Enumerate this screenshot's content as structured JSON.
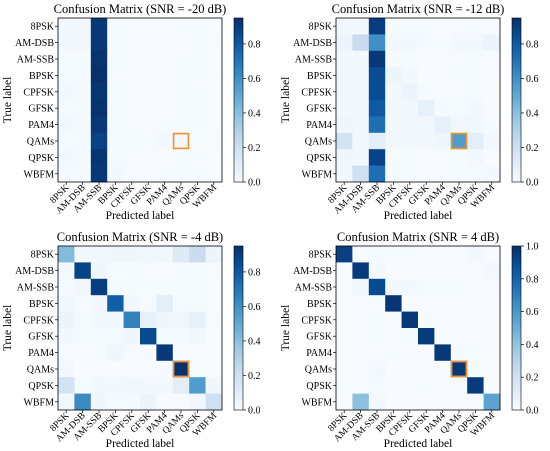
{
  "chart_data": [
    {
      "type": "heatmap",
      "title": "Confusion Matrix (SNR = -20 dB)",
      "xlabel": "Predicted label",
      "ylabel": "True label",
      "labels": [
        "8PSK",
        "AM-DSB",
        "AM-SSB",
        "BPSK",
        "CPFSK",
        "GFSK",
        "PAM4",
        "QAMs",
        "QPSK",
        "WBFM"
      ],
      "colorbar": {
        "min": 0,
        "max": 0.95,
        "ticks": [
          0.0,
          0.2,
          0.4,
          0.6,
          0.8
        ]
      },
      "highlight": {
        "row": 7,
        "col": 7
      },
      "matrix": [
        [
          0.02,
          0.02,
          0.92,
          0.01,
          0.01,
          0.0,
          0.0,
          0.01,
          0.01,
          0.0
        ],
        [
          0.02,
          0.02,
          0.92,
          0.01,
          0.01,
          0.0,
          0.0,
          0.0,
          0.01,
          0.01
        ],
        [
          0.01,
          0.01,
          0.94,
          0.01,
          0.01,
          0.0,
          0.0,
          0.01,
          0.01,
          0.0
        ],
        [
          0.01,
          0.01,
          0.95,
          0.01,
          0.0,
          0.0,
          0.0,
          0.01,
          0.01,
          0.0
        ],
        [
          0.02,
          0.01,
          0.93,
          0.01,
          0.01,
          0.0,
          0.0,
          0.01,
          0.01,
          0.0
        ],
        [
          0.01,
          0.01,
          0.94,
          0.01,
          0.01,
          0.0,
          0.0,
          0.01,
          0.01,
          0.0
        ],
        [
          0.02,
          0.01,
          0.92,
          0.01,
          0.01,
          0.0,
          0.01,
          0.01,
          0.01,
          0.0
        ],
        [
          0.01,
          0.01,
          0.88,
          0.01,
          0.01,
          0.01,
          0.02,
          0.03,
          0.01,
          0.01
        ],
        [
          0.02,
          0.01,
          0.93,
          0.01,
          0.01,
          0.0,
          0.0,
          0.01,
          0.01,
          0.0
        ],
        [
          0.01,
          0.01,
          0.92,
          0.02,
          0.01,
          0.0,
          0.01,
          0.01,
          0.01,
          0.0
        ]
      ]
    },
    {
      "type": "heatmap",
      "title": "Confusion Matrix (SNR = -12 dB)",
      "xlabel": "Predicted label",
      "ylabel": "True label",
      "labels": [
        "8PSK",
        "AM-DSB",
        "AM-SSB",
        "BPSK",
        "CPFSK",
        "GFSK",
        "PAM4",
        "QAMs",
        "QPSK",
        "WBFM"
      ],
      "colorbar": {
        "min": 0,
        "max": 0.95,
        "ticks": [
          0.0,
          0.2,
          0.4,
          0.6,
          0.8
        ]
      },
      "highlight": {
        "row": 7,
        "col": 7
      },
      "matrix": [
        [
          0.03,
          0.02,
          0.9,
          0.01,
          0.01,
          0.01,
          0.0,
          0.01,
          0.01,
          0.0
        ],
        [
          0.05,
          0.22,
          0.6,
          0.02,
          0.02,
          0.01,
          0.01,
          0.02,
          0.02,
          0.05
        ],
        [
          0.02,
          0.02,
          0.92,
          0.01,
          0.01,
          0.0,
          0.0,
          0.01,
          0.01,
          0.0
        ],
        [
          0.03,
          0.02,
          0.85,
          0.05,
          0.02,
          0.0,
          0.01,
          0.01,
          0.01,
          0.0
        ],
        [
          0.03,
          0.02,
          0.85,
          0.02,
          0.05,
          0.01,
          0.0,
          0.01,
          0.01,
          0.0
        ],
        [
          0.02,
          0.02,
          0.8,
          0.02,
          0.02,
          0.08,
          0.01,
          0.01,
          0.02,
          0.0
        ],
        [
          0.04,
          0.02,
          0.72,
          0.02,
          0.02,
          0.03,
          0.08,
          0.03,
          0.03,
          0.01
        ],
        [
          0.18,
          0.02,
          0.1,
          0.03,
          0.03,
          0.02,
          0.04,
          0.55,
          0.1,
          0.02
        ],
        [
          0.04,
          0.02,
          0.88,
          0.01,
          0.01,
          0.0,
          0.01,
          0.01,
          0.02,
          0.0
        ],
        [
          0.03,
          0.2,
          0.72,
          0.01,
          0.01,
          0.0,
          0.01,
          0.01,
          0.01,
          0.02
        ]
      ]
    },
    {
      "type": "heatmap",
      "title": "Confusion Matrix (SNR = -4 dB)",
      "xlabel": "Predicted label",
      "ylabel": "True label",
      "labels": [
        "8PSK",
        "AM-DSB",
        "AM-SSB",
        "BPSK",
        "CPFSK",
        "GFSK",
        "PAM4",
        "QAMs",
        "QPSK",
        "WBFM"
      ],
      "colorbar": {
        "min": 0,
        "max": 0.95,
        "ticks": [
          0.0,
          0.2,
          0.4,
          0.6,
          0.8
        ]
      },
      "highlight": {
        "row": 7,
        "col": 7
      },
      "matrix": [
        [
          0.42,
          0.02,
          0.03,
          0.04,
          0.04,
          0.03,
          0.03,
          0.12,
          0.22,
          0.05
        ],
        [
          0.02,
          0.88,
          0.04,
          0.01,
          0.01,
          0.01,
          0.0,
          0.01,
          0.01,
          0.01
        ],
        [
          0.01,
          0.03,
          0.9,
          0.01,
          0.01,
          0.01,
          0.01,
          0.01,
          0.01,
          0.0
        ],
        [
          0.03,
          0.01,
          0.02,
          0.78,
          0.03,
          0.01,
          0.1,
          0.01,
          0.01,
          0.0
        ],
        [
          0.05,
          0.01,
          0.02,
          0.03,
          0.65,
          0.08,
          0.04,
          0.03,
          0.08,
          0.01
        ],
        [
          0.02,
          0.01,
          0.01,
          0.01,
          0.04,
          0.86,
          0.01,
          0.01,
          0.03,
          0.0
        ],
        [
          0.01,
          0.0,
          0.01,
          0.04,
          0.01,
          0.01,
          0.92,
          0.0,
          0.0,
          0.0
        ],
        [
          0.02,
          0.0,
          0.01,
          0.0,
          0.0,
          0.0,
          0.01,
          0.95,
          0.01,
          0.0
        ],
        [
          0.18,
          0.01,
          0.03,
          0.02,
          0.03,
          0.02,
          0.02,
          0.1,
          0.55,
          0.04
        ],
        [
          0.03,
          0.62,
          0.04,
          0.01,
          0.01,
          0.05,
          0.0,
          0.01,
          0.03,
          0.2
        ]
      ]
    },
    {
      "type": "heatmap",
      "title": "Confusion Matrix (SNR = 4 dB)",
      "xlabel": "Predicted label",
      "ylabel": "True label",
      "labels": [
        "8PSK",
        "AM-DSB",
        "AM-SSB",
        "BPSK",
        "CPFSK",
        "GFSK",
        "PAM4",
        "QAMs",
        "QPSK",
        "WBFM"
      ],
      "colorbar": {
        "min": 0,
        "max": 1.0,
        "ticks": [
          0.0,
          0.2,
          0.4,
          0.6,
          0.8,
          1.0
        ]
      },
      "highlight": {
        "row": 7,
        "col": 7
      },
      "matrix": [
        [
          0.94,
          0.0,
          0.01,
          0.01,
          0.01,
          0.0,
          0.0,
          0.01,
          0.02,
          0.0
        ],
        [
          0.0,
          0.96,
          0.02,
          0.0,
          0.0,
          0.0,
          0.0,
          0.0,
          0.0,
          0.02
        ],
        [
          0.0,
          0.03,
          0.9,
          0.02,
          0.02,
          0.01,
          0.01,
          0.01,
          0.0,
          0.0
        ],
        [
          0.0,
          0.0,
          0.01,
          0.98,
          0.0,
          0.0,
          0.01,
          0.0,
          0.0,
          0.0
        ],
        [
          0.0,
          0.0,
          0.01,
          0.0,
          0.97,
          0.01,
          0.0,
          0.0,
          0.01,
          0.0
        ],
        [
          0.0,
          0.0,
          0.01,
          0.0,
          0.01,
          0.96,
          0.01,
          0.0,
          0.01,
          0.0
        ],
        [
          0.0,
          0.0,
          0.0,
          0.01,
          0.0,
          0.0,
          0.97,
          0.01,
          0.01,
          0.0
        ],
        [
          0.0,
          0.0,
          0.02,
          0.0,
          0.0,
          0.0,
          0.0,
          0.97,
          0.01,
          0.0
        ],
        [
          0.01,
          0.0,
          0.01,
          0.0,
          0.0,
          0.01,
          0.0,
          0.01,
          0.96,
          0.0
        ],
        [
          0.0,
          0.42,
          0.02,
          0.0,
          0.0,
          0.0,
          0.0,
          0.0,
          0.01,
          0.55
        ]
      ]
    }
  ]
}
